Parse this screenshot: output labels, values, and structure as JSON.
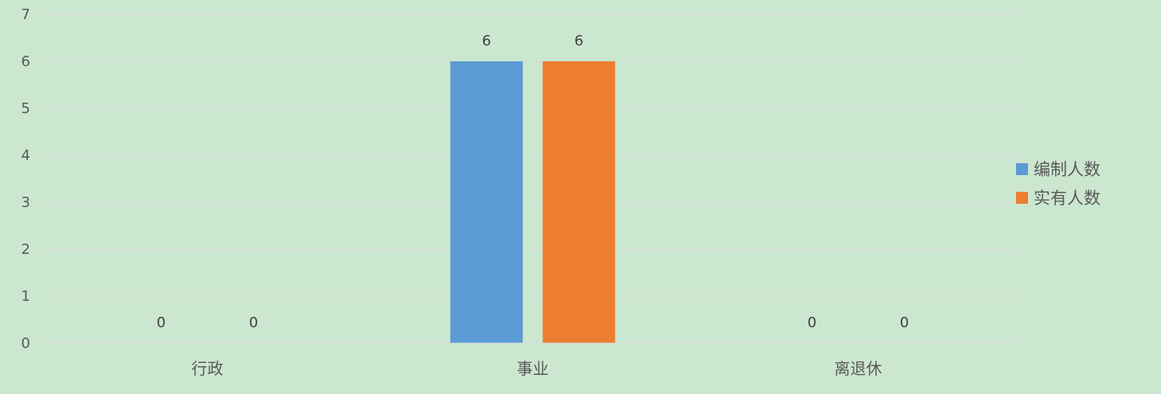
{
  "chart_data": {
    "type": "bar",
    "categories": [
      "行政",
      "事业",
      "离退休"
    ],
    "series": [
      {
        "name": "编制人数",
        "values": [
          0,
          6,
          0
        ],
        "color": "#5b9bd5"
      },
      {
        "name": "实有人数",
        "values": [
          0,
          6,
          0
        ],
        "color": "#ed7d31"
      }
    ],
    "title": "",
    "xlabel": "",
    "ylabel": "",
    "ylim": [
      0,
      7
    ],
    "yticks": [
      0,
      1,
      2,
      3,
      4,
      5,
      6,
      7
    ],
    "grid": true,
    "data_labels": true,
    "legend_position": "right",
    "background_color": "#cce7d0",
    "gridline_color": "#d9d9d9"
  }
}
